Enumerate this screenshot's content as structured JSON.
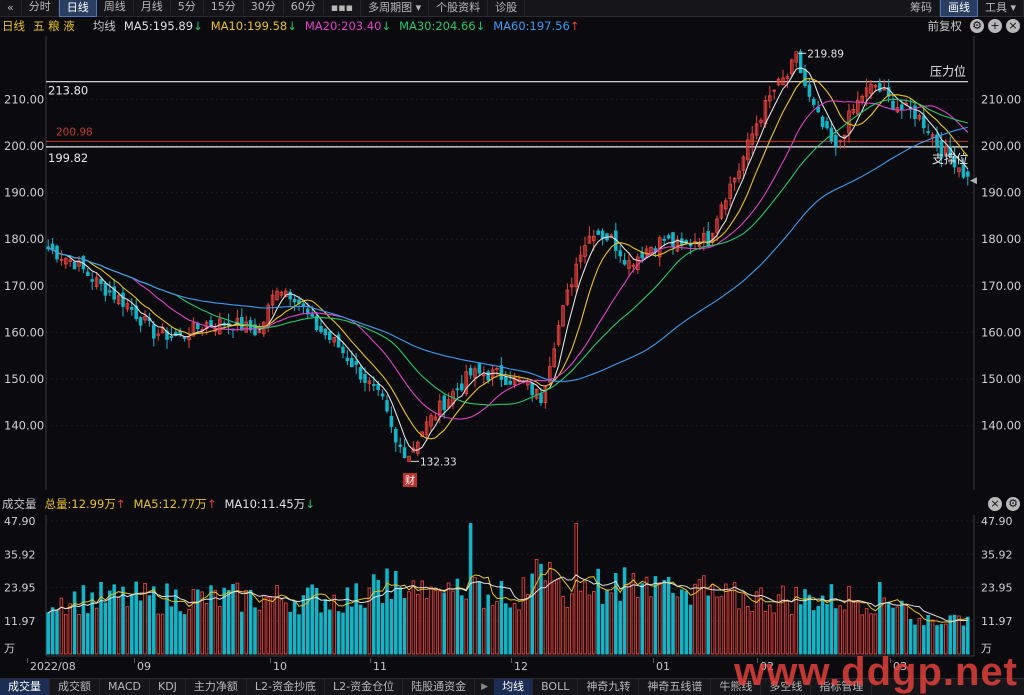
{
  "toolbar": {
    "nav_back_icon": "«",
    "tabs": [
      "分时",
      "日线",
      "周线",
      "月线",
      "5分",
      "15分",
      "30分",
      "60分"
    ],
    "active_tab": "日线",
    "more_icon": "▪▪▪",
    "multi_period": "多周期图",
    "stock_info": "个股资料",
    "diagnose": "诊股",
    "right_items": [
      "筹码",
      "画线",
      "工具"
    ],
    "active_right": "画线"
  },
  "indicator_bar": {
    "period": "日线",
    "stock_name": "五 粮 液",
    "type": "均线",
    "ma": [
      {
        "label": "MA5:195.89",
        "arrow": "↓",
        "color": "#e0e0e0"
      },
      {
        "label": "MA10:199.58",
        "arrow": "↓",
        "color": "#e8c21a"
      },
      {
        "label": "MA20:203.40",
        "arrow": "↓",
        "color": "#e040c8"
      },
      {
        "label": "MA30:204.66",
        "arrow": "↓",
        "color": "#22c86a"
      },
      {
        "label": "MA60:197.56",
        "arrow": "↑",
        "color": "#3a9cf0"
      }
    ],
    "adjust": "前复权"
  },
  "price_axis": [
    "210.00",
    "200.00",
    "190.00",
    "180.00",
    "170.00",
    "160.00",
    "150.00",
    "140.00"
  ],
  "annotations": {
    "pressure_value": "213.80",
    "pressure_label": "压力位",
    "support_value": "199.82",
    "support_label": "支撑位",
    "red_line_value": "200.98",
    "high_label": "219.89",
    "low_label": "132.33",
    "event_badge": "财"
  },
  "volume_bar": {
    "title": "成交量",
    "total": "总量:12.99万",
    "total_arrow": "↑",
    "ma5": "MA5:12.77万",
    "ma5_arrow": "↑",
    "ma10": "MA10:11.45万",
    "ma10_arrow": "↓"
  },
  "volume_axis": [
    "47.90",
    "35.92",
    "23.95",
    "11.97",
    "万"
  ],
  "date_axis": [
    "2022/08",
    "09",
    "10",
    "11",
    "12",
    "01",
    "02",
    "03"
  ],
  "bottom_tabs": [
    "成交量",
    "成交额",
    "MACD",
    "KDJ",
    "主力净额",
    "L2-资金抄底",
    "L2-资金仓位",
    "陆股通资金",
    "均线",
    "BOLL",
    "神奇九转",
    "神奇五线谱",
    "牛熊线",
    "多空线",
    "指标管理"
  ],
  "active_bottom": [
    "成交量",
    "均线"
  ],
  "watermark": "www.ddgp.net",
  "colors": {
    "up": "#e8413c",
    "down": "#13b5c7",
    "ma5": "#e0e0e0",
    "ma10": "#e8c21a",
    "ma20": "#e040c8",
    "ma30": "#22c86a",
    "ma60": "#3a9cf0"
  },
  "chart_data": {
    "type": "candlestick",
    "title": "五粮液 日线",
    "x_ticks": [
      "2022/08",
      "09",
      "10",
      "11",
      "12",
      "01",
      "02",
      "03"
    ],
    "ylim": [
      130,
      222
    ],
    "y_ticks": [
      140,
      150,
      160,
      170,
      180,
      190,
      200,
      210
    ],
    "key_prices": {
      "high": 219.89,
      "low": 132.33,
      "pressure": 213.8,
      "support": 199.82,
      "line": 200.98
    },
    "ma_latest": {
      "MA5": 195.89,
      "MA10": 199.58,
      "MA20": 203.4,
      "MA30": 204.66,
      "MA60": 197.56
    },
    "close_anchors": [
      [
        0,
        178
      ],
      [
        6,
        175
      ],
      [
        12,
        170
      ],
      [
        18,
        166
      ],
      [
        24,
        160
      ],
      [
        30,
        159
      ],
      [
        36,
        162
      ],
      [
        42,
        162
      ],
      [
        48,
        160
      ],
      [
        52,
        170
      ],
      [
        56,
        168
      ],
      [
        60,
        162
      ],
      [
        66,
        157
      ],
      [
        72,
        150
      ],
      [
        76,
        145
      ],
      [
        79,
        136
      ],
      [
        82,
        134
      ],
      [
        85,
        139
      ],
      [
        90,
        145
      ],
      [
        96,
        151
      ],
      [
        102,
        151
      ],
      [
        108,
        149
      ],
      [
        112,
        146
      ],
      [
        115,
        158
      ],
      [
        118,
        168
      ],
      [
        121,
        178
      ],
      [
        124,
        182
      ],
      [
        128,
        180
      ],
      [
        132,
        175
      ],
      [
        136,
        178
      ],
      [
        140,
        180
      ],
      [
        144,
        178
      ],
      [
        147,
        180
      ],
      [
        150,
        180
      ],
      [
        153,
        188
      ],
      [
        157,
        195
      ],
      [
        161,
        205
      ],
      [
        165,
        212
      ],
      [
        168,
        215
      ],
      [
        170,
        219
      ],
      [
        173,
        210
      ],
      [
        176,
        204
      ],
      [
        179,
        199
      ],
      [
        182,
        206
      ],
      [
        185,
        211
      ],
      [
        188,
        213
      ],
      [
        191,
        210
      ],
      [
        194,
        208
      ],
      [
        197,
        207
      ],
      [
        200,
        204
      ],
      [
        203,
        199
      ],
      [
        206,
        197
      ],
      [
        209,
        193
      ]
    ],
    "volume_ylim": [
      0,
      47.9
    ],
    "volume_ticks": [
      11.97,
      23.95,
      35.92,
      47.9
    ],
    "volume_unit": "万",
    "volume_latest": {
      "total": 12.99,
      "MA5": 12.77,
      "MA10": 11.45
    }
  }
}
